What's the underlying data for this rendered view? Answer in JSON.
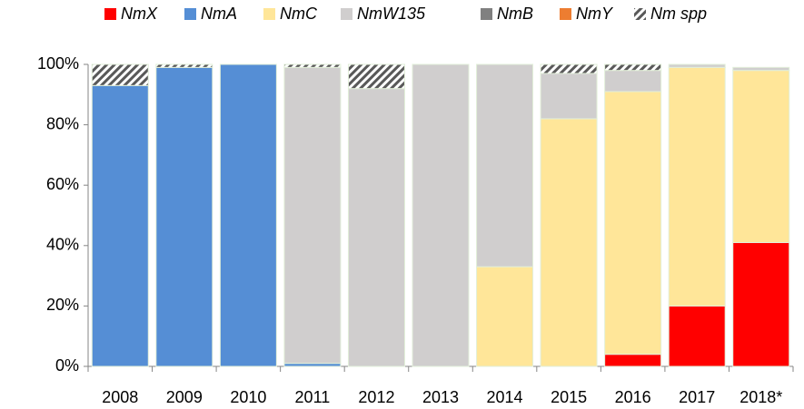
{
  "chart_data": {
    "type": "stacked-bar",
    "categories": [
      "2008",
      "2009",
      "2010",
      "2011",
      "2012",
      "2013",
      "2014",
      "2015",
      "2016",
      "2017",
      "2018*"
    ],
    "series": [
      {
        "name": "NmX",
        "color": "#ff0000",
        "values": [
          0,
          0,
          0,
          0,
          0,
          0,
          0,
          0,
          4,
          20,
          41
        ]
      },
      {
        "name": "NmA",
        "color": "#558ed5",
        "values": [
          93,
          99,
          100,
          1,
          0,
          0,
          0,
          0,
          0,
          0,
          0
        ]
      },
      {
        "name": "NmC",
        "color": "#ffe699",
        "values": [
          0,
          0,
          0,
          0,
          0,
          0,
          33,
          82,
          87,
          79,
          57
        ]
      },
      {
        "name": "NmW135",
        "color": "#d0cece",
        "values": [
          0,
          0,
          0,
          98,
          92,
          100,
          67,
          15,
          7,
          1,
          1
        ]
      },
      {
        "name": "NmB",
        "color": "#808080",
        "values": [
          0,
          0,
          0,
          0,
          0,
          0,
          0,
          0,
          0,
          0,
          0
        ]
      },
      {
        "name": "NmY",
        "color": "#ed7d31",
        "values": [
          0,
          0,
          0,
          0,
          0,
          0,
          0,
          0,
          0,
          0,
          0
        ]
      },
      {
        "name": "Nm spp",
        "color": "#595959",
        "hatch": true,
        "values": [
          7,
          1,
          0,
          1,
          8,
          0,
          0,
          3,
          2,
          0,
          0
        ]
      }
    ],
    "ylim": [
      0,
      100
    ],
    "yticks": [
      {
        "value": 0,
        "label": "0%"
      },
      {
        "value": 20,
        "label": "20%"
      },
      {
        "value": 40,
        "label": "40%"
      },
      {
        "value": 60,
        "label": "60%"
      },
      {
        "value": 80,
        "label": "80%"
      },
      {
        "value": 100,
        "label": "100%"
      }
    ],
    "legend": "top"
  }
}
